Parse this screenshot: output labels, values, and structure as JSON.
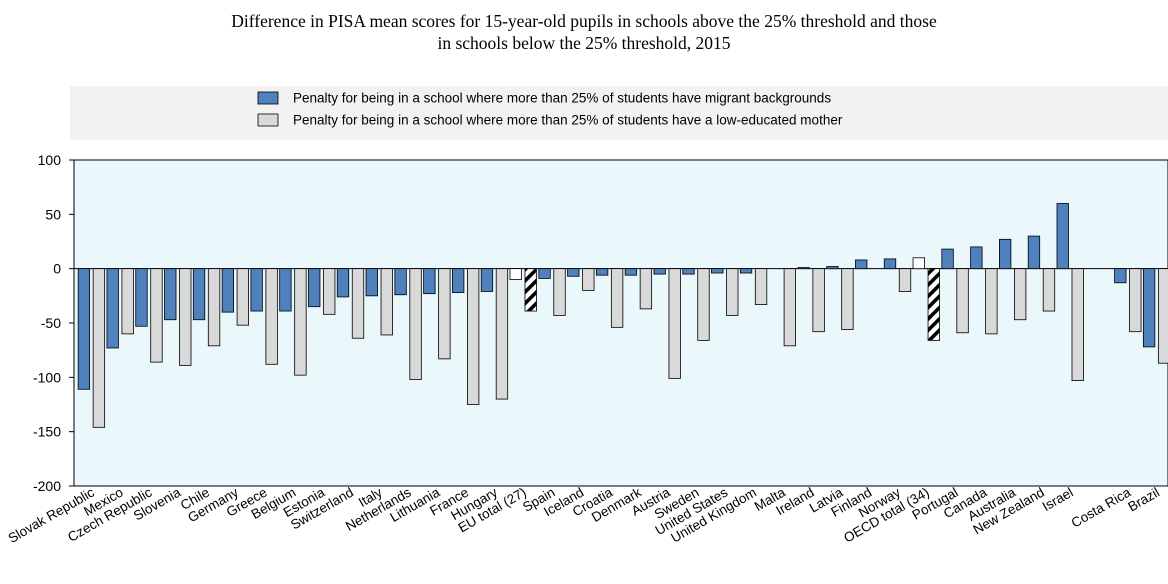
{
  "title_line1": "Difference in PISA mean scores for 15-year-old pupils in schools above the 25% threshold and those",
  "title_line2": "in schools below the 25% threshold, 2015",
  "colors": {
    "migrant": "#4f81bd",
    "loweduc": "#d9d9d9",
    "plot_bg": "#eaf7fb",
    "legend_bg": "#f2f2f2",
    "hatch": "#000000"
  },
  "chart_data": {
    "type": "bar",
    "ylim": [
      -200,
      100
    ],
    "yticks": [
      100,
      50,
      0,
      -50,
      -100,
      -150,
      -200
    ],
    "legend_position": "top",
    "grid": false,
    "categories": [
      "Slovak Republic",
      "Mexico",
      "Czech Republic",
      "Slovenia",
      "Chile",
      "Germany",
      "Greece",
      "Belgium",
      "Estonia",
      "Switzerland",
      "Italy",
      "Netherlands",
      "Lithuania",
      "France",
      "Hungary",
      "EU total (27)",
      "Spain",
      "Iceland",
      "Croatia",
      "Denmark",
      "Austria",
      "Sweden",
      "United States",
      "United Kingdom",
      "Malta",
      "Ireland",
      "Latvia",
      "Finland",
      "Norway",
      "OECD total (34)",
      "Portugal",
      "Canada",
      "Australia",
      "New Zealand",
      "Israel",
      "",
      "Costa Rica",
      "Brazil"
    ],
    "hatched_categories": [
      "EU total (27)",
      "OECD total (34)"
    ],
    "series": [
      {
        "name": "Penalty for being in a school where more than 25% of students have migrant backgrounds",
        "values": [
          -111,
          -73,
          -53,
          -47,
          -47,
          -40,
          -39,
          -39,
          -35,
          -26,
          -25,
          -24,
          -23,
          -22,
          -21,
          -10,
          -9,
          -7,
          -6,
          -6,
          -5,
          -5,
          -4,
          -4,
          null,
          1,
          2,
          8,
          9,
          10,
          18,
          20,
          27,
          30,
          60,
          null,
          -13,
          -72
        ]
      },
      {
        "name": "Penalty for being in a school where more than 25% of students have a low-educated mother",
        "values": [
          -146,
          -60,
          -86,
          -89,
          -71,
          -52,
          -88,
          -98,
          -42,
          -64,
          -61,
          -102,
          -83,
          -125,
          -120,
          -39,
          -43,
          -20,
          -54,
          -37,
          -101,
          -66,
          -43,
          -33,
          -71,
          -58,
          -56,
          null,
          -21,
          -66,
          -59,
          -60,
          -47,
          -39,
          -103,
          null,
          -58,
          -87
        ]
      }
    ]
  }
}
